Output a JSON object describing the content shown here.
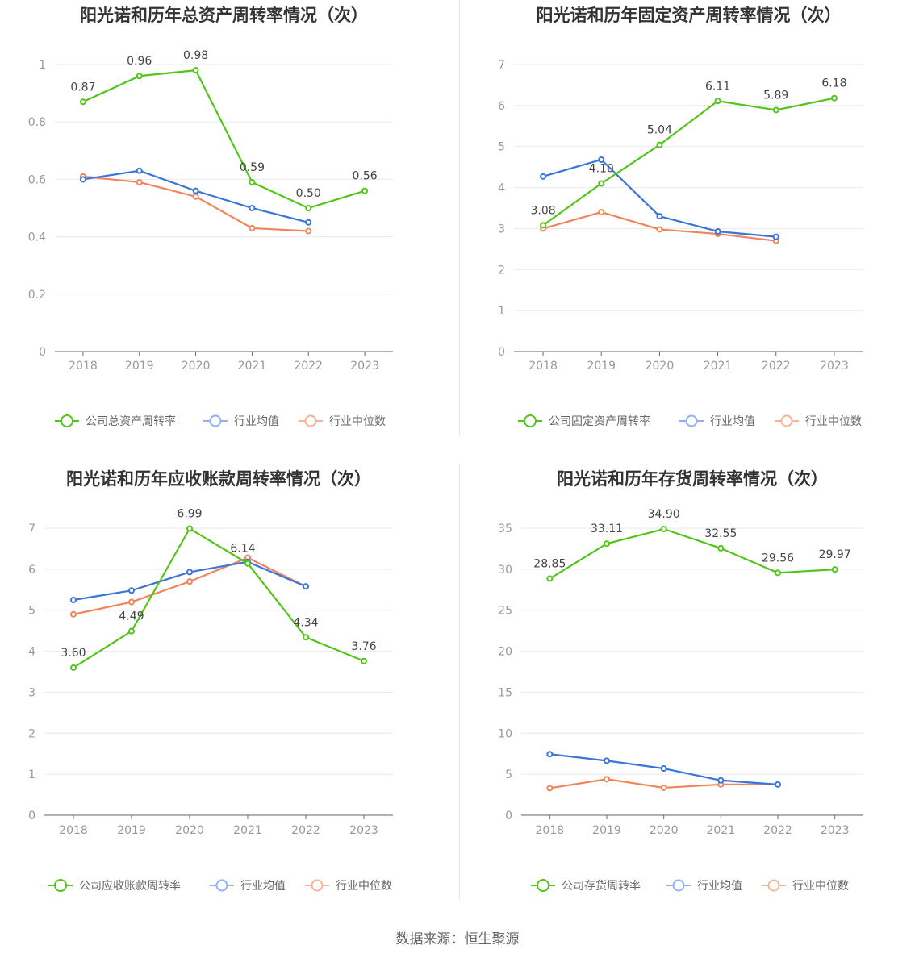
{
  "footer": "数据来源：恒生聚源",
  "colors": {
    "company": "#52c41a",
    "avg": "#3a75d8",
    "median": "#f0845a",
    "avg_legend": "#8fb1ef",
    "median_legend": "#f6b497"
  },
  "chart_data": [
    {
      "type": "line",
      "title": "阳光诺和历年总资产周转率情况（次）",
      "x": [
        "2018",
        "2019",
        "2020",
        "2021",
        "2022",
        "2023"
      ],
      "ylim": [
        0,
        1
      ],
      "yticks": [
        0,
        0.2,
        0.4,
        0.6,
        0.8,
        1
      ],
      "ytick_labels": [
        "0",
        "0.2",
        "0.4",
        "0.6",
        "0.8",
        "1"
      ],
      "series": [
        {
          "name": "公司总资产周转率",
          "values": [
            0.87,
            0.96,
            0.98,
            0.59,
            0.5,
            0.56
          ],
          "labels": [
            "0.87",
            "0.96",
            "0.98",
            "0.59",
            "0.50",
            "0.56"
          ]
        },
        {
          "name": "行业均值",
          "values": [
            0.6,
            0.63,
            0.56,
            0.5,
            0.45,
            null
          ]
        },
        {
          "name": "行业中位数",
          "values": [
            0.61,
            0.59,
            0.54,
            0.43,
            0.42,
            null
          ]
        }
      ]
    },
    {
      "type": "line",
      "title": "阳光诺和历年固定资产周转率情况（次）",
      "x": [
        "2018",
        "2019",
        "2020",
        "2021",
        "2022",
        "2023"
      ],
      "ylim": [
        0,
        7
      ],
      "yticks": [
        0,
        1,
        2,
        3,
        4,
        5,
        6,
        7
      ],
      "ytick_labels": [
        "0",
        "1",
        "2",
        "3",
        "4",
        "5",
        "6",
        "7"
      ],
      "series": [
        {
          "name": "公司固定资产周转率",
          "values": [
            3.08,
            4.1,
            5.04,
            6.11,
            5.89,
            6.18
          ],
          "labels": [
            "3.08",
            "4.10",
            "5.04",
            "6.11",
            "5.89",
            "6.18"
          ]
        },
        {
          "name": "行业均值",
          "values": [
            4.27,
            4.68,
            3.3,
            2.93,
            2.8,
            null
          ]
        },
        {
          "name": "行业中位数",
          "values": [
            3.0,
            3.4,
            2.98,
            2.87,
            2.7,
            null
          ]
        }
      ]
    },
    {
      "type": "line",
      "title": "阳光诺和历年应收账款周转率情况（次）",
      "x": [
        "2018",
        "2019",
        "2020",
        "2021",
        "2022",
        "2023"
      ],
      "ylim": [
        0,
        7
      ],
      "yticks": [
        0,
        1,
        2,
        3,
        4,
        5,
        6,
        7
      ],
      "ytick_labels": [
        "0",
        "1",
        "2",
        "3",
        "4",
        "5",
        "6",
        "7"
      ],
      "series": [
        {
          "name": "公司应收账款周转率",
          "values": [
            3.6,
            4.49,
            6.99,
            6.14,
            4.34,
            3.76
          ],
          "labels": [
            "3.60",
            "4.49",
            "6.99",
            "6.14",
            "4.34",
            "3.76"
          ]
        },
        {
          "name": "行业均值",
          "values": [
            5.25,
            5.48,
            5.93,
            6.18,
            5.58,
            null
          ]
        },
        {
          "name": "行业中位数",
          "values": [
            4.9,
            5.2,
            5.7,
            6.28,
            5.58,
            null
          ]
        }
      ]
    },
    {
      "type": "line",
      "title": "阳光诺和历年存货周转率情况（次）",
      "x": [
        "2018",
        "2019",
        "2020",
        "2021",
        "2022",
        "2023"
      ],
      "ylim": [
        0,
        35
      ],
      "yticks": [
        0,
        5,
        10,
        15,
        20,
        25,
        30,
        35
      ],
      "ytick_labels": [
        "0",
        "5",
        "10",
        "15",
        "20",
        "25",
        "30",
        "35"
      ],
      "series": [
        {
          "name": "公司存货周转率",
          "values": [
            28.85,
            33.11,
            34.9,
            32.55,
            29.56,
            29.97
          ],
          "labels": [
            "28.85",
            "33.11",
            "34.90",
            "32.55",
            "29.56",
            "29.97"
          ]
        },
        {
          "name": "行业均值",
          "values": [
            7.45,
            6.65,
            5.7,
            4.25,
            3.75,
            null
          ]
        },
        {
          "name": "行业中位数",
          "values": [
            3.3,
            4.4,
            3.35,
            3.75,
            3.75,
            null
          ]
        }
      ]
    }
  ]
}
